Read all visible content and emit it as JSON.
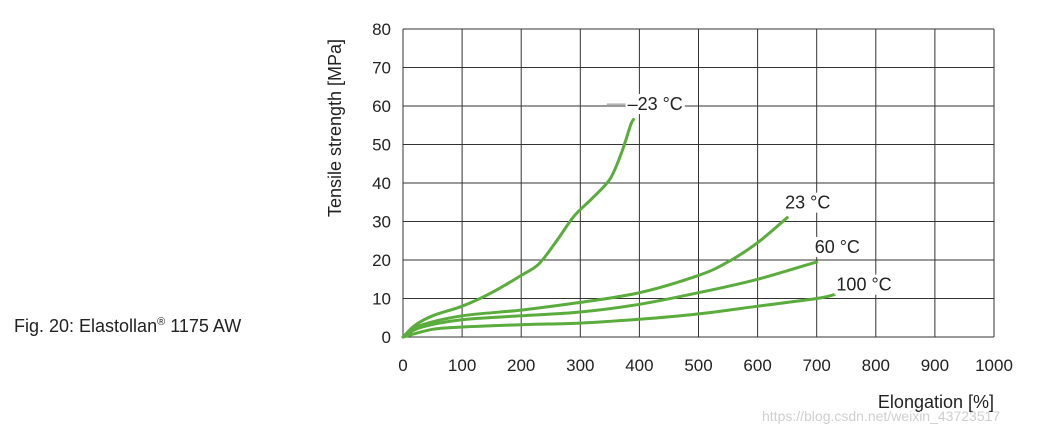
{
  "caption": {
    "prefix": "Fig. 20: Elastollan",
    "mark": "®",
    "suffix": " 1175 AW"
  },
  "watermark": "https://blog.csdn.net/weixin_43723517",
  "chart_data": {
    "type": "line",
    "title": "",
    "xlabel": "Elongation [%]",
    "ylabel": "Tensile strength [MPa]",
    "xlim": [
      0,
      1000
    ],
    "ylim": [
      0,
      80
    ],
    "xticks": [
      0,
      100,
      200,
      300,
      400,
      500,
      600,
      700,
      800,
      900,
      1000
    ],
    "yticks": [
      0,
      10,
      20,
      30,
      40,
      50,
      60,
      70,
      80
    ],
    "grid": true,
    "line_color": "#5aac3c",
    "series": [
      {
        "name": "–23 °C",
        "x": [
          0,
          20,
          50,
          100,
          150,
          200,
          230,
          260,
          290,
          320,
          350,
          370,
          385,
          390
        ],
        "y": [
          0,
          3,
          5.5,
          8,
          11.5,
          16,
          19,
          25,
          31.5,
          36,
          41,
          48,
          55,
          56.5
        ]
      },
      {
        "name": "23 °C",
        "x": [
          0,
          30,
          100,
          200,
          300,
          400,
          500,
          550,
          600,
          650
        ],
        "y": [
          0,
          3,
          5.5,
          7,
          9,
          11.5,
          16,
          19.5,
          24.5,
          31
        ]
      },
      {
        "name": "60 °C",
        "x": [
          0,
          30,
          100,
          200,
          300,
          400,
          500,
          600,
          700
        ],
        "y": [
          0,
          2.5,
          4.5,
          5.5,
          6.5,
          8.5,
          11.5,
          15,
          19.5
        ]
      },
      {
        "name": "100 °C",
        "x": [
          0,
          50,
          100,
          200,
          300,
          400,
          500,
          600,
          700,
          730
        ],
        "y": [
          0,
          2,
          2.6,
          3.2,
          3.6,
          4.6,
          6,
          8,
          10,
          11
        ]
      }
    ]
  }
}
